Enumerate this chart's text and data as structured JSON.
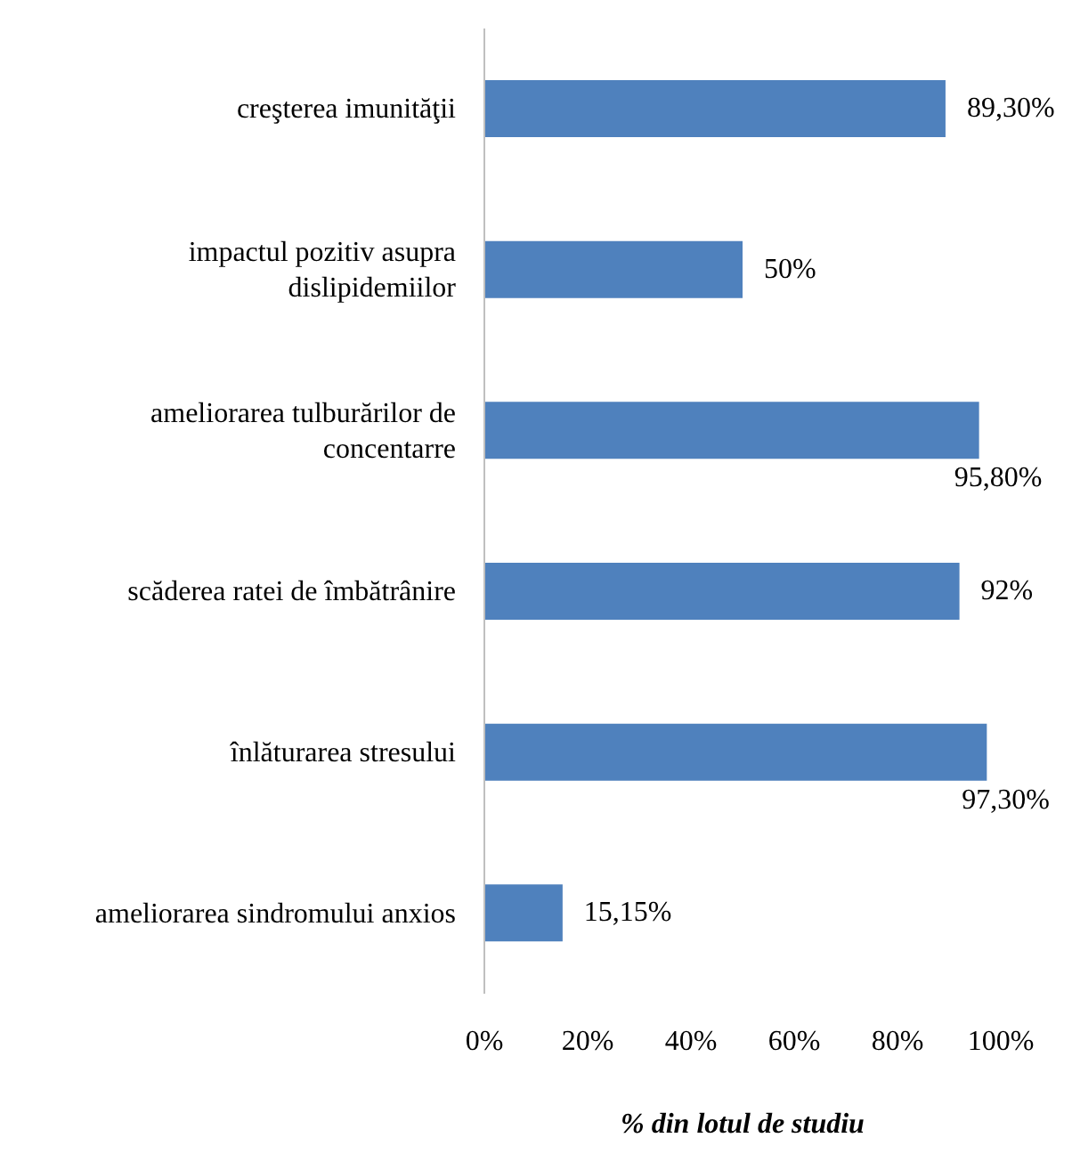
{
  "chart_data": {
    "type": "bar",
    "orientation": "horizontal",
    "xlabel": "% din lotul de studiu",
    "categories": [
      "creşterea imunităţii",
      "impactul pozitiv asupra dislipidemiilor",
      "ameliorarea tulburărilor de concentarre",
      "scăderea ratei de îmbătrânire",
      "înlăturarea stresului",
      "ameliorarea sindromului anxios"
    ],
    "values": [
      89.3,
      50,
      95.8,
      92,
      97.3,
      15.15
    ],
    "value_labels": [
      "89,30%",
      "50%",
      "95,80%",
      "92%",
      "97,30%",
      "15,15%"
    ],
    "color": "#4f81bd",
    "xlim": [
      0,
      100
    ],
    "xticks": [
      {
        "value": 0,
        "label": "0%"
      },
      {
        "value": 20,
        "label": "20%"
      },
      {
        "value": 40,
        "label": "40%"
      },
      {
        "value": 60,
        "label": "60%"
      },
      {
        "value": 80,
        "label": "80%"
      },
      {
        "value": 100,
        "label": "100%"
      }
    ],
    "grid": false,
    "legend": false
  }
}
